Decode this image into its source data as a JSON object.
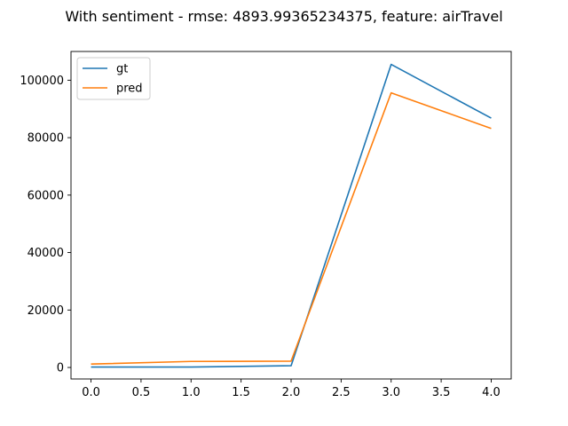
{
  "chart_data": {
    "type": "line",
    "title": "With sentiment - rmse: 4893.99365234375, feature: airTravel",
    "xlabel": "",
    "ylabel": "",
    "x": [
      0,
      1,
      2,
      3,
      4
    ],
    "xlim": [
      -0.2,
      4.2
    ],
    "ylim": [
      -4000,
      110000
    ],
    "xticks": [
      0.0,
      0.5,
      1.0,
      1.5,
      2.0,
      2.5,
      3.0,
      3.5,
      4.0
    ],
    "xtick_labels": [
      "0.0",
      "0.5",
      "1.0",
      "1.5",
      "2.0",
      "2.5",
      "3.0",
      "3.5",
      "4.0"
    ],
    "yticks": [
      0,
      20000,
      40000,
      60000,
      80000,
      100000
    ],
    "ytick_labels": [
      "0",
      "20000",
      "40000",
      "60000",
      "80000",
      "100000"
    ],
    "grid": false,
    "legend_position": "upper-left",
    "series": [
      {
        "name": "gt",
        "color": "#1f77b4",
        "values": [
          150,
          150,
          600,
          105500,
          86800
        ]
      },
      {
        "name": "pred",
        "color": "#ff7f0e",
        "values": [
          1200,
          2100,
          2200,
          95600,
          83200
        ]
      }
    ]
  }
}
